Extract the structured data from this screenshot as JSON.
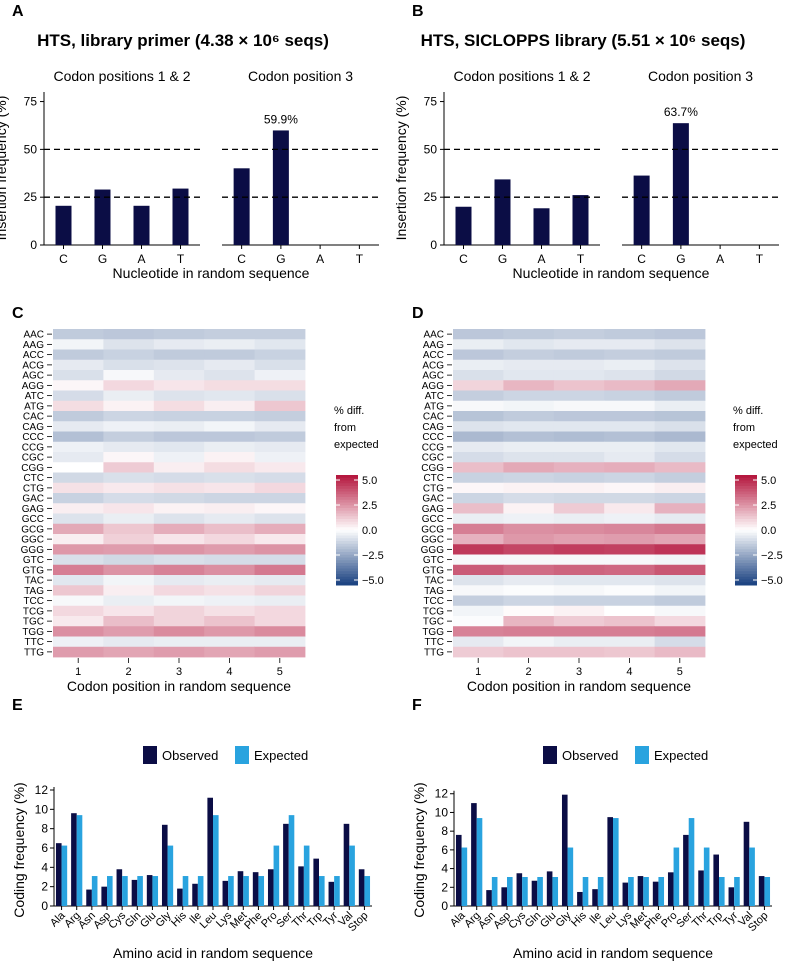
{
  "panels": {
    "A": "A",
    "B": "B",
    "C": "C",
    "D": "D",
    "E": "E",
    "F": "F"
  },
  "colors": {
    "observed": "#0b0d45",
    "expected": "#29a3df",
    "heat_neg": "#173f7f",
    "heat_mid": "#ffffff",
    "heat_pos": "#b3123a",
    "axis": "#000000"
  },
  "heatmap_legend": {
    "title_lines": [
      "% diff.",
      "from",
      "expected"
    ],
    "ticks": [
      "5.0",
      "2.5",
      "0.0",
      "−2.5",
      "−5.0"
    ]
  },
  "chart_data": [
    {
      "id": "A",
      "type": "bar",
      "title": "HTS, library primer (4.38 × 10⁶ seqs)",
      "facets": [
        "Codon positions 1 & 2",
        "Codon position 3"
      ],
      "categories": [
        "C",
        "G",
        "A",
        "T"
      ],
      "series": [
        {
          "name": "Codon positions 1 & 2",
          "values": [
            20.5,
            29.0,
            20.5,
            29.5
          ]
        },
        {
          "name": "Codon position 3",
          "values": [
            40.1,
            59.9,
            0,
            0
          ]
        }
      ],
      "annotation": "59.9%",
      "reference_lines": [
        25,
        50
      ],
      "xlabel": "Nucleotide in random sequence",
      "ylabel": "Insertion frequency (%)",
      "ylim": [
        0,
        80
      ],
      "yticks": [
        "0",
        "25",
        "50",
        "75"
      ]
    },
    {
      "id": "B",
      "type": "bar",
      "title": "HTS, SICLOPPS library (5.51 × 10⁶ seqs)",
      "facets": [
        "Codon positions 1 & 2",
        "Codon position 3"
      ],
      "categories": [
        "C",
        "G",
        "A",
        "T"
      ],
      "series": [
        {
          "name": "Codon positions 1 & 2",
          "values": [
            20.0,
            34.3,
            19.2,
            26.1
          ]
        },
        {
          "name": "Codon position 3",
          "values": [
            36.3,
            63.7,
            0,
            0
          ]
        }
      ],
      "annotation": "63.7%",
      "reference_lines": [
        25,
        50
      ],
      "xlabel": "Nucleotide in random sequence",
      "ylabel": "Insertion frequency (%)",
      "ylim": [
        0,
        80
      ],
      "yticks": [
        "0",
        "25",
        "50",
        "75"
      ]
    },
    {
      "id": "C",
      "type": "heatmap",
      "rows": [
        "AAC",
        "AAG",
        "ACC",
        "ACG",
        "AGC",
        "AGG",
        "ATC",
        "ATG",
        "CAC",
        "CAG",
        "CCC",
        "CCG",
        "CGC",
        "CGG",
        "CTC",
        "CTG",
        "GAC",
        "GAG",
        "GCC",
        "GCG",
        "GGC",
        "GGG",
        "GTC",
        "GTG",
        "TAC",
        "TAG",
        "TCC",
        "TCG",
        "TGC",
        "TGG",
        "TTC",
        "TTG"
      ],
      "columns": [
        "1",
        "2",
        "3",
        "4",
        "5"
      ],
      "values": [
        [
          -1.5,
          -1.6,
          -1.5,
          -1.4,
          -1.4
        ],
        [
          -0.3,
          -0.8,
          -0.6,
          -0.5,
          -0.7
        ],
        [
          -1.5,
          -1.3,
          -1.5,
          -1.5,
          -1.3
        ],
        [
          -0.6,
          -0.9,
          -0.8,
          -0.6,
          -0.9
        ],
        [
          -0.9,
          -0.2,
          -0.6,
          -0.8,
          -0.4
        ],
        [
          0.2,
          0.9,
          0.6,
          0.8,
          0.8
        ],
        [
          -1.0,
          -0.5,
          -0.8,
          -0.7,
          -0.9
        ],
        [
          0.8,
          0.3,
          0.8,
          0.4,
          1.3
        ],
        [
          -1.5,
          -1.2,
          -1.3,
          -1.3,
          -1.4
        ],
        [
          -0.6,
          -0.4,
          -0.5,
          -0.3,
          -0.6
        ],
        [
          -1.8,
          -1.4,
          -1.6,
          -1.6,
          -1.5
        ],
        [
          -0.4,
          -0.6,
          -0.7,
          -0.5,
          -0.6
        ],
        [
          -0.6,
          0.2,
          -0.4,
          0.3,
          -0.4
        ],
        [
          0.0,
          1.2,
          0.4,
          0.8,
          0.5
        ],
        [
          -1.1,
          -0.9,
          -1.0,
          -0.9,
          -1.0
        ],
        [
          0.7,
          0.5,
          0.7,
          0.6,
          0.9
        ],
        [
          -1.3,
          -1.0,
          -1.1,
          -1.2,
          -1.2
        ],
        [
          0.4,
          0.6,
          0.3,
          0.4,
          0.2
        ],
        [
          -0.8,
          -0.5,
          -0.8,
          -0.6,
          -0.8
        ],
        [
          2.0,
          1.3,
          1.9,
          1.5,
          1.9
        ],
        [
          0.4,
          1.1,
          0.6,
          0.9,
          0.5
        ],
        [
          2.4,
          2.3,
          2.5,
          2.3,
          2.5
        ],
        [
          -0.9,
          -1.1,
          -0.9,
          -1.0,
          -1.0
        ],
        [
          3.0,
          2.5,
          2.9,
          2.6,
          3.1
        ],
        [
          -0.7,
          -0.3,
          -0.6,
          -0.5,
          -0.6
        ],
        [
          1.3,
          0.4,
          0.9,
          0.7,
          1.0
        ],
        [
          -0.2,
          -0.5,
          -0.3,
          -0.4,
          -0.5
        ],
        [
          0.9,
          0.6,
          1.0,
          0.7,
          0.9
        ],
        [
          0.5,
          1.5,
          1.0,
          1.4,
          0.9
        ],
        [
          2.6,
          2.3,
          2.7,
          2.4,
          2.7
        ],
        [
          -0.4,
          -0.6,
          -0.5,
          -0.5,
          -0.5
        ],
        [
          2.3,
          2.1,
          2.3,
          2.1,
          2.3
        ]
      ],
      "xlabel": "Codon position in random sequence",
      "color_range": [
        -5.5,
        5.5
      ]
    },
    {
      "id": "D",
      "type": "heatmap",
      "rows": [
        "AAC",
        "AAG",
        "ACC",
        "ACG",
        "AGC",
        "AGG",
        "ATC",
        "ATG",
        "CAC",
        "CAG",
        "CCC",
        "CCG",
        "CGC",
        "CGG",
        "CTC",
        "CTG",
        "GAC",
        "GAG",
        "GCC",
        "GCG",
        "GGC",
        "GGG",
        "GTC",
        "GTG",
        "TAC",
        "TAG",
        "TCC",
        "TCG",
        "TGC",
        "TGG",
        "TTC",
        "TTG"
      ],
      "columns": [
        "1",
        "2",
        "3",
        "4",
        "5"
      ],
      "values": [
        [
          -1.6,
          -1.5,
          -1.4,
          -1.5,
          -1.6
        ],
        [
          -0.5,
          -0.7,
          -0.6,
          -0.6,
          -0.8
        ],
        [
          -1.6,
          -1.4,
          -1.5,
          -1.4,
          -1.5
        ],
        [
          -0.5,
          -0.6,
          -0.6,
          -0.5,
          -0.8
        ],
        [
          -0.9,
          -0.7,
          -0.7,
          -0.8,
          -1.1
        ],
        [
          1.0,
          1.7,
          1.4,
          1.6,
          2.0
        ],
        [
          -1.4,
          -1.2,
          -1.2,
          -1.3,
          -1.5
        ],
        [
          -0.2,
          -0.3,
          -0.2,
          -0.2,
          -0.5
        ],
        [
          -1.7,
          -1.5,
          -1.6,
          -1.6,
          -1.7
        ],
        [
          -0.8,
          -0.7,
          -0.7,
          -0.7,
          -0.9
        ],
        [
          -2.0,
          -1.8,
          -1.9,
          -1.8,
          -2.0
        ],
        [
          -0.6,
          -0.5,
          -0.5,
          -0.5,
          -0.7
        ],
        [
          -1.0,
          -0.8,
          -0.8,
          -0.6,
          -1.0
        ],
        [
          1.5,
          2.0,
          1.8,
          1.9,
          1.6
        ],
        [
          -1.3,
          -1.2,
          -1.3,
          -1.2,
          -1.4
        ],
        [
          0.2,
          0.3,
          0.3,
          0.2,
          0.4
        ],
        [
          -1.2,
          -1.0,
          -1.1,
          -1.1,
          -1.2
        ],
        [
          1.5,
          0.3,
          1.2,
          0.5,
          1.8
        ],
        [
          -0.5,
          -0.4,
          -0.5,
          -0.4,
          -0.6
        ],
        [
          3.0,
          2.6,
          2.7,
          2.8,
          3.1
        ],
        [
          1.8,
          2.4,
          2.2,
          2.3,
          2.1
        ],
        [
          4.6,
          4.3,
          4.5,
          4.4,
          4.7
        ],
        [
          -0.2,
          -0.2,
          -0.2,
          -0.2,
          -0.3
        ],
        [
          3.8,
          3.4,
          3.6,
          3.5,
          3.9
        ],
        [
          -0.8,
          -0.6,
          -0.7,
          -0.7,
          -0.8
        ],
        [
          -0.2,
          -0.1,
          -0.2,
          -0.1,
          -0.3
        ],
        [
          -1.4,
          -1.2,
          -1.3,
          -1.3,
          -1.5
        ],
        [
          -0.3,
          0.1,
          0.3,
          0.0,
          -0.2
        ],
        [
          -0.1,
          1.7,
          1.2,
          1.4,
          0.9
        ],
        [
          2.9,
          3.0,
          3.0,
          3.0,
          3.1
        ],
        [
          -0.6,
          -0.3,
          -0.5,
          -0.5,
          -1.0
        ],
        [
          1.2,
          1.4,
          1.4,
          1.3,
          1.6
        ]
      ],
      "xlabel": "Codon position in random sequence",
      "color_range": [
        -5.5,
        5.5
      ]
    },
    {
      "id": "E",
      "type": "bar",
      "legend": [
        "Observed",
        "Expected"
      ],
      "categories": [
        "Ala",
        "Arg",
        "Asn",
        "Asp",
        "Cys",
        "Gln",
        "Glu",
        "Gly",
        "His",
        "Ile",
        "Leu",
        "Lys",
        "Met",
        "Phe",
        "Pro",
        "Ser",
        "Thr",
        "Trp",
        "Tyr",
        "Val",
        "Stop"
      ],
      "series": [
        {
          "name": "Observed",
          "values": [
            6.5,
            9.6,
            1.7,
            2.0,
            3.8,
            2.7,
            3.2,
            8.4,
            1.8,
            2.3,
            11.2,
            2.6,
            3.6,
            3.5,
            3.8,
            8.5,
            4.1,
            4.9,
            2.5,
            8.5,
            3.8
          ]
        },
        {
          "name": "Expected",
          "values": [
            6.25,
            9.4,
            3.1,
            3.1,
            3.1,
            3.1,
            3.1,
            6.25,
            3.1,
            3.1,
            9.4,
            3.1,
            3.1,
            3.1,
            6.25,
            9.4,
            6.25,
            3.1,
            3.1,
            6.25,
            3.1
          ]
        }
      ],
      "xlabel": "Amino acid in random sequence",
      "ylabel": "Coding frequency (%)",
      "ylim": [
        0,
        12
      ],
      "yticks": [
        "0",
        "2",
        "4",
        "6",
        "8",
        "10",
        "12"
      ]
    },
    {
      "id": "F",
      "type": "bar",
      "legend": [
        "Observed",
        "Expected"
      ],
      "categories": [
        "Ala",
        "Arg",
        "Asn",
        "Asp",
        "Cys",
        "Gln",
        "Glu",
        "Gly",
        "His",
        "Ile",
        "Leu",
        "Lys",
        "Met",
        "Phe",
        "Pro",
        "Ser",
        "Thr",
        "Trp",
        "Tyr",
        "Val",
        "Stop"
      ],
      "series": [
        {
          "name": "Observed",
          "values": [
            7.6,
            11.0,
            1.7,
            2.0,
            3.5,
            2.7,
            3.7,
            11.9,
            1.5,
            1.8,
            9.5,
            2.5,
            3.2,
            2.6,
            3.6,
            7.6,
            3.8,
            5.5,
            2.0,
            9.0,
            3.2
          ]
        },
        {
          "name": "Expected",
          "values": [
            6.25,
            9.4,
            3.1,
            3.1,
            3.1,
            3.1,
            3.1,
            6.25,
            3.1,
            3.1,
            9.4,
            3.1,
            3.1,
            3.1,
            6.25,
            9.4,
            6.25,
            3.1,
            3.1,
            6.25,
            3.1
          ]
        }
      ],
      "xlabel": "Amino acid in random sequence",
      "ylabel": "Coding frequency (%)",
      "ylim": [
        0,
        12.4
      ],
      "yticks": [
        "0",
        "2",
        "4",
        "6",
        "8",
        "10",
        "12"
      ]
    }
  ]
}
